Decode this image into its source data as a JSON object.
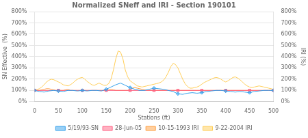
{
  "chart_data": {
    "type": "line",
    "title": "Normalized SNeff and IRI - Section 190101",
    "xlabel": "Stations (ft)",
    "ylabel": "SN Effective  (%)",
    "y2label": "IRI (%)",
    "xlim": [
      0,
      500
    ],
    "xticks": [
      0,
      50,
      100,
      150,
      200,
      250,
      300,
      350,
      400,
      450,
      500
    ],
    "ylim": [
      0,
      800
    ],
    "yticks": [
      {
        "value": 0,
        "label": "0%"
      },
      {
        "value": 100,
        "label": "100%"
      },
      {
        "value": 200,
        "label": "200%"
      },
      {
        "value": 300,
        "label": "300%"
      },
      {
        "value": 400,
        "label": "400%"
      },
      {
        "value": 500,
        "label": "500%"
      },
      {
        "value": 600,
        "label": "600%"
      },
      {
        "value": 700,
        "label": "700%"
      },
      {
        "value": 800,
        "label": "800%"
      }
    ],
    "y2lim": [
      0,
      800
    ],
    "y2ticks": [
      {
        "value": 0,
        "label": "0%"
      },
      {
        "value": 100,
        "label": "100%"
      },
      {
        "value": 200,
        "label": "200%"
      },
      {
        "value": 300,
        "label": "300%"
      },
      {
        "value": 400,
        "label": "400%"
      },
      {
        "value": 500,
        "label": "500%"
      },
      {
        "value": 600,
        "label": "600%"
      },
      {
        "value": 700,
        "label": "700%"
      },
      {
        "value": 800,
        "label": "800%"
      }
    ],
    "grid": "y",
    "legend": "bottom",
    "series": [
      {
        "name": "5/19/93-SN",
        "marker": "diamond",
        "x": [
          0,
          10,
          20,
          30,
          40,
          50,
          60,
          70,
          80,
          90,
          100,
          110,
          120,
          130,
          140,
          150,
          160,
          170,
          180,
          190,
          200,
          210,
          220,
          230,
          240,
          250,
          260,
          270,
          280,
          290,
          300,
          310,
          320,
          330,
          340,
          350,
          360,
          370,
          380,
          390,
          400,
          410,
          420,
          430,
          440,
          450,
          460,
          470,
          480,
          490,
          500
        ],
        "values": [
          100,
          90,
          85,
          95,
          100,
          95,
          90,
          100,
          100,
          95,
          100,
          95,
          100,
          100,
          95,
          110,
          130,
          150,
          165,
          145,
          125,
          110,
          100,
          100,
          110,
          120,
          115,
          110,
          100,
          90,
          70,
          65,
          75,
          80,
          75,
          80,
          90,
          95,
          100,
          100,
          95,
          90,
          85,
          90,
          85,
          80,
          90,
          95,
          100,
          100,
          100
        ]
      },
      {
        "name": "28-Jun-05",
        "marker": "square",
        "x": [
          0,
          50,
          100,
          150,
          200,
          250,
          300,
          350,
          400,
          450,
          500
        ],
        "values": [
          100,
          100,
          100,
          100,
          100,
          100,
          100,
          100,
          100,
          100,
          100
        ]
      },
      {
        "name": "10-15-1993 IRI",
        "axis": "y2",
        "x": [
          0,
          5,
          10,
          15,
          20,
          25,
          30,
          35,
          40,
          45,
          50,
          55,
          60,
          65,
          70,
          75,
          80,
          85,
          90,
          95,
          100,
          105,
          110,
          115,
          120,
          125,
          130,
          135,
          140,
          145,
          150,
          155,
          160,
          165,
          170,
          175,
          180,
          185,
          190,
          195,
          200,
          205,
          210,
          215,
          220,
          225,
          230,
          235,
          240,
          245,
          250,
          255,
          260,
          265,
          270,
          275,
          280,
          285,
          290,
          295,
          300,
          305,
          310,
          315,
          320,
          325,
          330,
          335,
          340,
          345,
          350,
          355,
          360,
          365,
          370,
          375,
          380,
          385,
          390,
          395,
          400,
          405,
          410,
          415,
          420,
          425,
          430,
          435,
          440,
          445,
          450,
          455,
          460,
          465,
          470,
          475,
          480,
          485,
          490,
          495,
          500
        ],
        "values": [
          100,
          100,
          100,
          105,
          110,
          115,
          115,
          110,
          105,
          100,
          100,
          100,
          100,
          105,
          110,
          100,
          100,
          100,
          100,
          100,
          100,
          100,
          100,
          100,
          100,
          100,
          100,
          100,
          100,
          100,
          100,
          105,
          110,
          105,
          100,
          100,
          100,
          100,
          100,
          100,
          110,
          120,
          125,
          120,
          115,
          110,
          105,
          100,
          100,
          100,
          100,
          100,
          100,
          100,
          100,
          100,
          100,
          100,
          100,
          100,
          100,
          100,
          100,
          100,
          100,
          100,
          100,
          100,
          100,
          100,
          100,
          100,
          100,
          100,
          100,
          100,
          100,
          100,
          100,
          100,
          100,
          100,
          100,
          100,
          100,
          100,
          100,
          100,
          100,
          100,
          100,
          100,
          100,
          100,
          100,
          100,
          100,
          100,
          100,
          100,
          100
        ]
      },
      {
        "name": "9-22-2004 IRI",
        "axis": "y2",
        "x": [
          0,
          5,
          10,
          15,
          20,
          25,
          30,
          35,
          40,
          45,
          50,
          55,
          60,
          65,
          70,
          75,
          80,
          85,
          90,
          95,
          100,
          105,
          110,
          115,
          120,
          125,
          130,
          135,
          140,
          145,
          150,
          155,
          160,
          165,
          170,
          175,
          180,
          185,
          190,
          195,
          200,
          205,
          210,
          215,
          220,
          225,
          230,
          235,
          240,
          245,
          250,
          255,
          260,
          265,
          270,
          275,
          280,
          285,
          290,
          295,
          300,
          305,
          310,
          315,
          320,
          325,
          330,
          335,
          340,
          345,
          350,
          355,
          360,
          365,
          370,
          375,
          380,
          385,
          390,
          395,
          400,
          405,
          410,
          415,
          420,
          425,
          430,
          435,
          440,
          445,
          450,
          455,
          460,
          465,
          470,
          475,
          480,
          485,
          490,
          495,
          500
        ],
        "values": [
          105,
          108,
          115,
          130,
          150,
          175,
          190,
          200,
          195,
          185,
          175,
          165,
          150,
          145,
          140,
          150,
          165,
          185,
          200,
          210,
          215,
          200,
          180,
          165,
          150,
          145,
          155,
          165,
          155,
          145,
          145,
          160,
          200,
          280,
          380,
          450,
          440,
          380,
          280,
          220,
          185,
          170,
          155,
          140,
          135,
          130,
          135,
          140,
          145,
          150,
          155,
          160,
          165,
          175,
          190,
          220,
          260,
          310,
          340,
          330,
          300,
          250,
          200,
          160,
          135,
          120,
          120,
          125,
          130,
          140,
          155,
          170,
          180,
          190,
          200,
          210,
          215,
          210,
          200,
          185,
          175,
          185,
          200,
          215,
          220,
          210,
          195,
          175,
          155,
          140,
          130,
          125,
          130,
          135,
          140,
          135,
          130,
          125,
          120,
          115,
          110
        ]
      }
    ]
  }
}
